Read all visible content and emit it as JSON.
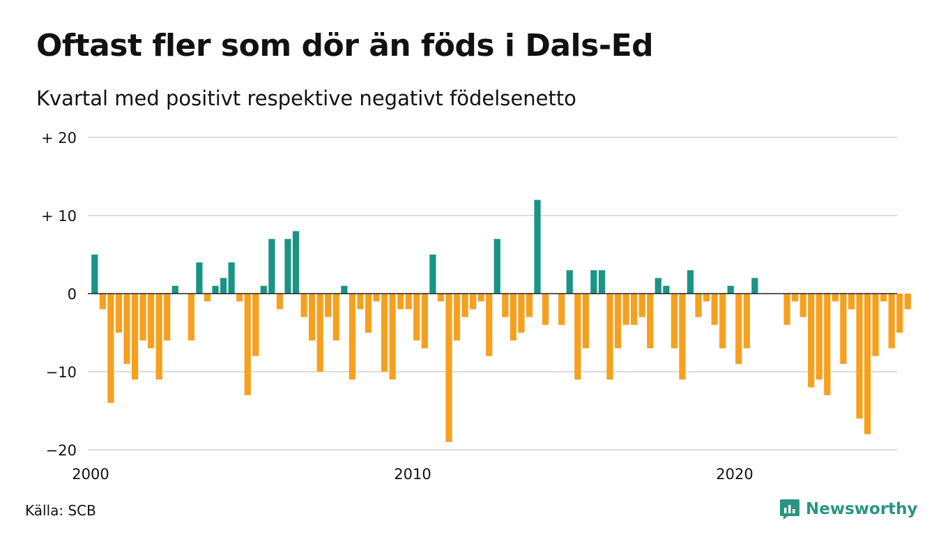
{
  "title": "Oftast fler som dör än föds i Dals-Ed",
  "subtitle": "Kvartal med positivt respektive negativt födelsenetto",
  "source": "Källa: SCB",
  "brand": {
    "name": "Newsworthy",
    "color": "#2a9484"
  },
  "colors": {
    "positive": "#1a9484",
    "negative": "#f7a01e",
    "grid": "#dddddd",
    "zero": "#222222"
  },
  "chart_data": {
    "type": "bar",
    "title": "Oftast fler som dör än föds i Dals-Ed",
    "subtitle": "Kvartal med positivt respektive negativt födelsenetto",
    "xlabel": "",
    "ylabel": "",
    "ylim": [
      -20,
      20
    ],
    "y_ticks": [
      {
        "value": 20,
        "label": "+ 20"
      },
      {
        "value": 10,
        "label": "+ 10"
      },
      {
        "value": 0,
        "label": "0"
      },
      {
        "value": -10,
        "label": "−10"
      },
      {
        "value": -20,
        "label": "−20"
      }
    ],
    "x_ticks": [
      {
        "value": 2000,
        "label": "2000"
      },
      {
        "value": 2010,
        "label": "2010"
      },
      {
        "value": 2020,
        "label": "2020"
      }
    ],
    "start": "2000-Q1",
    "grid": true,
    "legend": "none",
    "values": [
      5,
      -2,
      -14,
      -5,
      -9,
      -11,
      -6,
      -7,
      -11,
      -6,
      1,
      0,
      -6,
      4,
      -1,
      1,
      2,
      4,
      -1,
      -13,
      -8,
      1,
      7,
      -2,
      7,
      8,
      -3,
      -6,
      -10,
      -3,
      -6,
      1,
      -11,
      -2,
      -5,
      -1,
      -10,
      -11,
      -2,
      -2,
      -6,
      -7,
      5,
      -1,
      -19,
      -6,
      -3,
      -2,
      -1,
      -8,
      7,
      -3,
      -6,
      -5,
      -3,
      12,
      -4,
      0,
      -4,
      3,
      -11,
      -7,
      3,
      3,
      -11,
      -7,
      -4,
      -4,
      -3,
      -7,
      2,
      1,
      -7,
      -11,
      3,
      -3,
      -1,
      -4,
      -7,
      1,
      -9,
      -7,
      2,
      0,
      0,
      0,
      -4,
      -1,
      -3,
      -12,
      -11,
      -13,
      -1,
      -9,
      -2,
      -16,
      -18,
      -8,
      -1,
      -7,
      -5,
      -2
    ]
  }
}
